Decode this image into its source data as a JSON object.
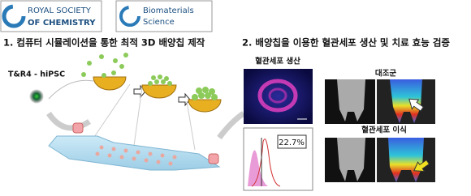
{
  "logos": {
    "publisher": {
      "line1": "ROYAL SOCIETY",
      "line2": "OF CHEMISTRY"
    },
    "journal": {
      "line1": "Biomaterials",
      "line2": "Science"
    }
  },
  "section1": {
    "title": "1. 컴퓨터 시뮬레이션을 통한 최적 3D 배양칩 제작",
    "cell_label": "T&R4 - hiPSC"
  },
  "section2": {
    "title": "2. 배양칩을 이용한 혈관세포 생산 및 치료 효능 검증",
    "production_label": "혈관세포 생산",
    "percentage": "22.7%",
    "control_label": "대조군",
    "transplant_label": "혈관세포 이식"
  }
}
